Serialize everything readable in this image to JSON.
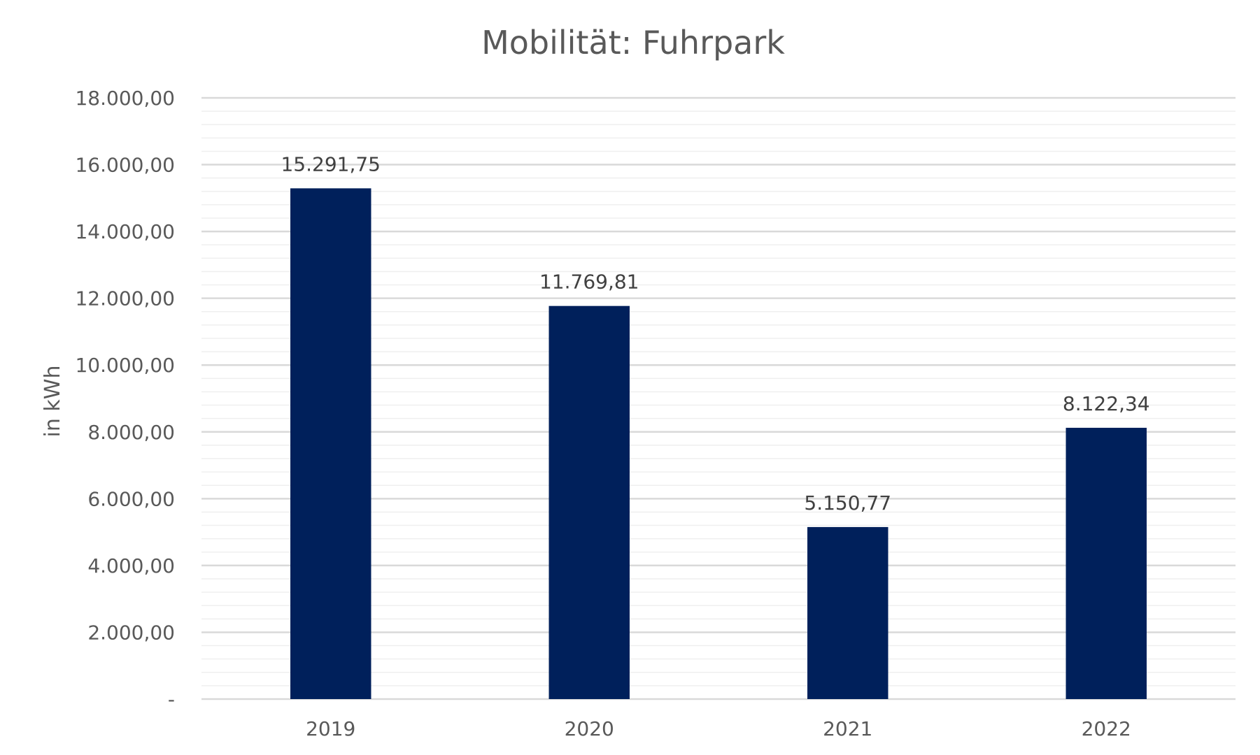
{
  "chart_data": {
    "type": "bar",
    "title": "Mobilität: Fuhrpark",
    "ylabel": "in kWh",
    "xlabel": "",
    "categories": [
      "2019",
      "2020",
      "2021",
      "2022"
    ],
    "values": [
      15291.75,
      11769.81,
      5150.77,
      8122.34
    ],
    "data_labels": [
      "15.291,75",
      "11.769,81",
      "5.150,77",
      "8.122,34"
    ],
    "ylim": [
      0,
      18000
    ],
    "y_ticks": [
      0,
      2000,
      4000,
      6000,
      8000,
      10000,
      12000,
      14000,
      16000,
      18000
    ],
    "y_tick_labels": [
      "-",
      "2.000,00",
      "4.000,00",
      "6.000,00",
      "8.000,00",
      "10.000,00",
      "12.000,00",
      "14.000,00",
      "16.000,00",
      "18.000,00"
    ],
    "minor_gridline_step": 400,
    "grid": true,
    "legend": "none",
    "bar_color": "#00205b",
    "major_grid_color": "#d9d9d9",
    "minor_grid_color": "#efefef"
  }
}
